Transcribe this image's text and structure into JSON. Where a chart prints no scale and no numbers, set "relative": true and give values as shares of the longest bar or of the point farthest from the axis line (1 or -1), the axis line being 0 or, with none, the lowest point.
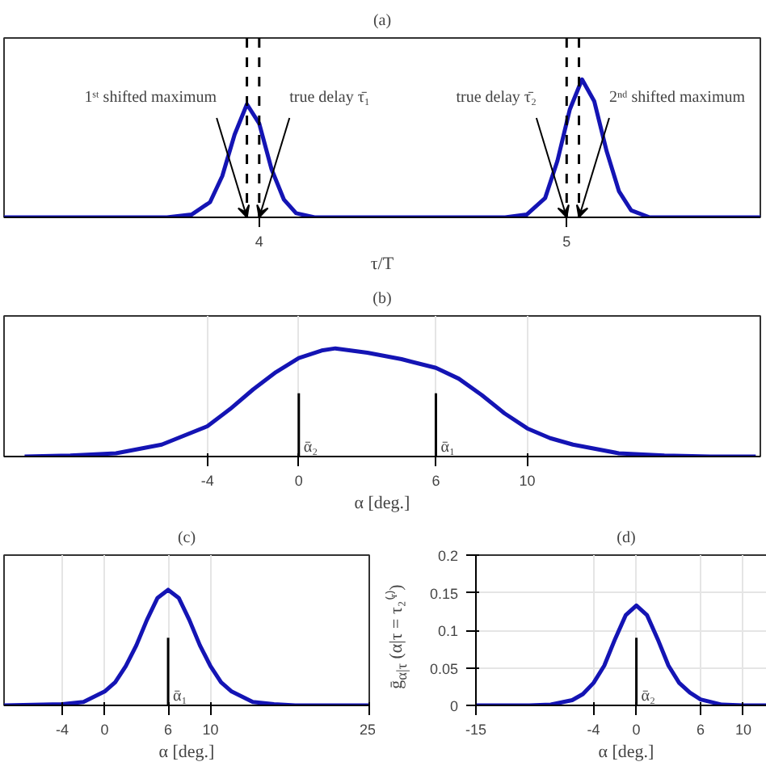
{
  "chart_data": [
    {
      "type": "line",
      "title": "(a)",
      "xlabel": "τ/T",
      "relative": true,
      "xlim": [
        3.17,
        5.63
      ],
      "xticks": [
        4,
        5
      ],
      "grid": false,
      "color": "#1414b4",
      "x": [
        3.17,
        3.7,
        3.78,
        3.84,
        3.88,
        3.92,
        3.96,
        4.0,
        4.04,
        4.08,
        4.12,
        4.18,
        4.8,
        4.87,
        4.93,
        4.97,
        5.01,
        5.05,
        5.09,
        5.13,
        5.17,
        5.21,
        5.27,
        5.63
      ],
      "values": [
        0,
        0,
        0.02,
        0.11,
        0.3,
        0.6,
        0.82,
        0.68,
        0.35,
        0.13,
        0.03,
        0,
        0,
        0.02,
        0.14,
        0.41,
        0.78,
        1.0,
        0.84,
        0.48,
        0.19,
        0.05,
        0,
        0
      ],
      "ref_lines": [
        {
          "axis": "x",
          "value": 3.96,
          "line_style": "dashed",
          "color": "#000000"
        },
        {
          "axis": "x",
          "value": 4.0,
          "line_style": "dashed",
          "color": "#000000"
        },
        {
          "axis": "x",
          "value": 5.0,
          "line_style": "dashed",
          "color": "#000000"
        },
        {
          "axis": "x",
          "value": 5.04,
          "line_style": "dashed",
          "color": "#000000"
        }
      ],
      "annotations": [
        {
          "text": "1ˢᵗ shifted maximum",
          "x": 3.96,
          "y": 0
        },
        {
          "text": "true delay τ̄₁",
          "x": 4.0,
          "y": 0
        },
        {
          "text": "true delay τ̄₂",
          "x": 5.0,
          "y": 0
        },
        {
          "text": "2ⁿᵈ shifted maximum",
          "x": 5.04,
          "y": 0
        }
      ]
    },
    {
      "type": "line",
      "title": "(b)",
      "xlabel": "α [deg.]",
      "relative": true,
      "xlim": [
        -12.9,
        20.2
      ],
      "xticks": [
        -4,
        0,
        6,
        10
      ],
      "grid": "x",
      "color": "#1414b4",
      "x": [
        -12,
        -10,
        -8,
        -6,
        -4,
        -3,
        -2,
        -1,
        0,
        1,
        1.6,
        3,
        4.5,
        6,
        7,
        8,
        9,
        10,
        11,
        12,
        14,
        16,
        18,
        20
      ],
      "values": [
        0,
        0.01,
        0.03,
        0.11,
        0.28,
        0.44,
        0.62,
        0.78,
        0.91,
        0.98,
        1.0,
        0.96,
        0.9,
        0.82,
        0.72,
        0.57,
        0.4,
        0.26,
        0.17,
        0.11,
        0.03,
        0.01,
        0,
        0
      ],
      "ref_lines": [
        {
          "axis": "x",
          "value": 0,
          "label": "ᾱ₂"
        },
        {
          "axis": "x",
          "value": 6,
          "label": "ᾱ₁"
        }
      ]
    },
    {
      "type": "line",
      "title": "(c)",
      "xlabel": "α [deg.]",
      "relative": true,
      "xlim": [
        -9.5,
        25
      ],
      "xticks": [
        -4,
        0,
        6,
        10,
        25
      ],
      "grid": "x",
      "color": "#1414b4",
      "x": [
        -9.5,
        -4,
        -2,
        0,
        1,
        2,
        3,
        4,
        5,
        6,
        7,
        8,
        9,
        10,
        11,
        12,
        14,
        16,
        18,
        25
      ],
      "values": [
        0,
        0.01,
        0.03,
        0.12,
        0.2,
        0.34,
        0.52,
        0.74,
        0.93,
        1.0,
        0.93,
        0.74,
        0.52,
        0.34,
        0.2,
        0.12,
        0.03,
        0.01,
        0,
        0
      ],
      "ref_lines": [
        {
          "axis": "x",
          "value": 6,
          "label": "ᾱ₁"
        }
      ]
    },
    {
      "type": "line",
      "title": "(d)",
      "xlabel": "α [deg.]",
      "ylabel": "ḡ$_{α|τ}$ (α|τ = τ₂⁽ʳ⁾)",
      "xlim": [
        -15,
        13.1
      ],
      "xticks": [
        -15,
        -4,
        0,
        6,
        10
      ],
      "ylim": [
        0,
        0.2
      ],
      "yticks": [
        0,
        0.05,
        0.1,
        0.15,
        0.2
      ],
      "grid": true,
      "color": "#1414b4",
      "x": [
        -15,
        -10,
        -8,
        -6,
        -5,
        -4,
        -3,
        -2,
        -1,
        0,
        1,
        2,
        3,
        4,
        5,
        6,
        8,
        10,
        13.1
      ],
      "values": [
        0,
        0,
        0.001,
        0.007,
        0.015,
        0.03,
        0.053,
        0.088,
        0.12,
        0.133,
        0.12,
        0.088,
        0.053,
        0.03,
        0.017,
        0.008,
        0.001,
        0,
        0
      ],
      "ref_lines": [
        {
          "axis": "x",
          "value": 0,
          "label": "ᾱ₂"
        }
      ]
    }
  ]
}
